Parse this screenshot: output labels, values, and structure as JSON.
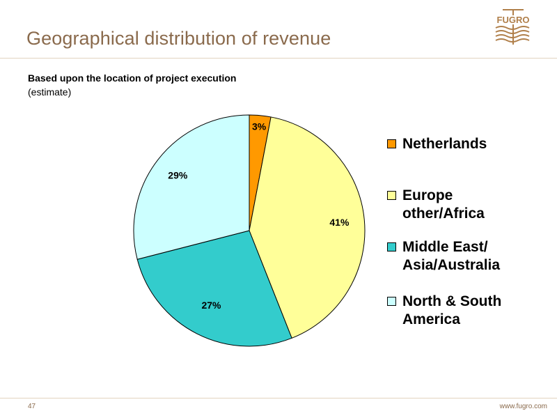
{
  "slide": {
    "title": "Geographical distribution of revenue",
    "subtitle_bold": "Based upon the location of project execution",
    "subtitle_light": "(estimate)",
    "page_number": "47",
    "url": "www.fugro.com",
    "logo_text": "FUGRO"
  },
  "colors": {
    "title": "#8a6a4c",
    "rule": "#e2d3bf",
    "logo": "#b07f4a"
  },
  "chart_data": {
    "type": "pie",
    "start_angle": "12 o'clock, clockwise",
    "slices": [
      {
        "name": "Netherlands",
        "label": "3%",
        "value": 3,
        "color": "#ff9900"
      },
      {
        "name": "Europe other/Africa",
        "label": "41%",
        "value": 41,
        "color": "#ffff99"
      },
      {
        "name": "Middle East/ Asia/Australia",
        "label": "27%",
        "value": 27,
        "color": "#33cccc"
      },
      {
        "name": "North & South America",
        "label": "29%",
        "value": 29,
        "color": "#ccffff"
      }
    ],
    "legend": [
      {
        "line1": "Netherlands",
        "line2": "",
        "color": "#ff9900"
      },
      {
        "line1": "Europe",
        "line2": "other/Africa",
        "color": "#ffff99"
      },
      {
        "line1": "Middle East/",
        "line2": "Asia/Australia",
        "color": "#33cccc"
      },
      {
        "line1": "North & South",
        "line2": "America",
        "color": "#ccffff"
      }
    ],
    "legend_position": "right"
  }
}
